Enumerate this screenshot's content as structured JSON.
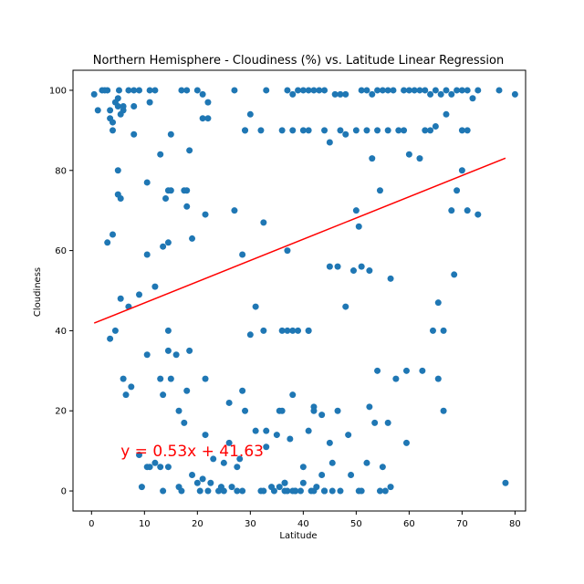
{
  "chart_data": {
    "type": "scatter",
    "title": "Northern Hemisphere - Cloudiness (%) vs. Latitude Linear Regression",
    "xlabel": "Latitude",
    "ylabel": "Cloudiness",
    "xlim": [
      -3.5,
      82
    ],
    "ylim": [
      -5,
      105
    ],
    "xticks": [
      0,
      10,
      20,
      30,
      40,
      50,
      60,
      70,
      80
    ],
    "yticks": [
      0,
      20,
      40,
      60,
      80,
      100
    ],
    "grid": false,
    "colors": {
      "points": "#1f77b4",
      "regression": "#ff0000",
      "annotation": "#ff0000"
    },
    "regression": {
      "slope": 0.53,
      "intercept": 41.63,
      "x_range": [
        0.5,
        78.2
      ]
    },
    "annotation": {
      "text": "y = 0.53x + 41.63",
      "x": 5.5,
      "y": 10
    },
    "points": {
      "x": [
        0.5,
        1.2,
        2.0,
        3.0,
        3.5,
        4.0,
        4.5,
        5.0,
        5.2,
        6.0,
        7.0,
        8.0,
        9.0,
        11.0,
        12.0,
        17.0,
        18.0,
        20.0,
        21.0,
        27.0,
        33.0,
        37.0,
        38.0,
        39.0,
        40.0,
        41.0,
        42.0,
        43.0,
        44.0,
        46.0,
        47.0,
        48.0,
        51.0,
        52.0,
        53.0,
        54.0,
        55.0,
        56.0,
        57.0,
        59.0,
        60.0,
        61.0,
        62.0,
        63.0,
        64.0,
        65.0,
        66.0,
        67.0,
        68.0,
        69.0,
        70.0,
        71.0,
        72.0,
        73.0,
        77.0,
        5.0,
        5.5,
        6.0,
        8.0,
        4.0,
        3.5,
        2.5,
        11.0,
        15.0,
        22.0,
        29.0,
        30.0,
        29.0,
        32.0,
        36.0,
        38.0,
        40.0,
        41.0,
        44.0,
        47.0,
        50.0,
        52.0,
        54.0,
        56.0,
        59.0,
        63.0,
        64.0,
        65.0,
        71.0,
        67.0,
        70.0,
        5.0,
        13.0,
        18.5,
        18.0,
        21.0,
        22.0,
        45.0,
        48.0,
        53.0,
        58.0,
        62.0,
        8.0,
        10.5,
        14.0,
        17.5,
        14.5,
        15.0,
        18.0,
        21.5,
        27.0,
        32.5,
        37.0,
        50.0,
        54.5,
        60.0,
        68.0,
        69.0,
        70.0,
        71.0,
        73.0,
        80.0,
        3.0,
        4.0,
        5.0,
        5.5,
        10.5,
        12.0,
        13.5,
        14.5,
        19.0,
        30.0,
        28.5,
        36.0,
        38.0,
        39.0,
        41.0,
        46.5,
        49.5,
        51.0,
        52.5,
        56.5,
        57.5,
        65.5,
        68.5,
        50.5,
        7.0,
        9.0,
        5.5,
        3.5,
        4.5,
        10.5,
        14.5,
        16.0,
        18.5,
        31.0,
        32.5,
        37.0,
        41.0,
        45.0,
        48.0,
        54.0,
        59.5,
        62.5,
        64.5,
        66.5,
        14.5,
        15.0,
        13.0,
        18.0,
        21.5,
        26.0,
        28.5,
        35.5,
        38.0,
        42.0,
        46.5,
        52.5,
        56.0,
        59.5,
        65.5,
        66.5,
        6.0,
        6.5,
        7.5,
        13.5,
        16.5,
        17.5,
        21.5,
        26.0,
        33.0,
        36.0,
        41.0,
        42.0,
        43.5,
        45.0,
        48.5,
        52.0,
        53.5,
        55.0,
        10.5,
        11.0,
        13.0,
        14.5,
        19.0,
        21.0,
        23.0,
        25.0,
        27.5,
        29.0,
        31.0,
        33.0,
        35.0,
        37.5,
        40.0,
        43.5,
        45.5,
        50.5,
        54.5,
        56.5,
        9.5,
        16.5,
        20.0,
        22.5,
        24.5,
        26.5,
        27.5,
        32.0,
        34.5,
        36.5,
        38.5,
        41.5,
        44.0,
        45.5,
        51.0,
        55.5,
        78.2,
        13.5,
        17.0,
        20.5,
        22.0,
        24.0,
        25.0,
        28.5,
        32.5,
        34.0,
        37.0,
        38.5,
        42.0,
        44.0,
        35.5,
        38.0,
        39.5,
        36.5,
        40.0,
        42.5,
        44.0,
        47.0,
        49.0,
        28.0,
        36.5,
        12.0,
        9.0
      ],
      "y": [
        99,
        95,
        100,
        100,
        93,
        92,
        97,
        98,
        100,
        95,
        100,
        100,
        100,
        100,
        100,
        100,
        100,
        100,
        99,
        100,
        100,
        100,
        99,
        100,
        100,
        100,
        100,
        100,
        100,
        99,
        99,
        99,
        100,
        100,
        99,
        100,
        100,
        100,
        100,
        100,
        100,
        100,
        100,
        100,
        99,
        100,
        99,
        100,
        99,
        100,
        100,
        100,
        98,
        100,
        100,
        96,
        94,
        96,
        96,
        90,
        95,
        100,
        97,
        89,
        97,
        90,
        94,
        90,
        90,
        90,
        90,
        90,
        90,
        90,
        90,
        90,
        90,
        90,
        90,
        90,
        90,
        90,
        91,
        90,
        94,
        90,
        80,
        84,
        85,
        75,
        93,
        93,
        87,
        89,
        83,
        90,
        83,
        89,
        77,
        73,
        75,
        75,
        75,
        71,
        69,
        70,
        67,
        60,
        70,
        75,
        84,
        70,
        75,
        80,
        70,
        69,
        99,
        62,
        64,
        74,
        73,
        59,
        51,
        61,
        62,
        63,
        39,
        59,
        40,
        40,
        40,
        40,
        56,
        55,
        56,
        55,
        53,
        28,
        47,
        54,
        66,
        46,
        49,
        48,
        38,
        40,
        34,
        40,
        34,
        35,
        46,
        40,
        40,
        40,
        56,
        46,
        30,
        30,
        30,
        40,
        40,
        35,
        28,
        28,
        25,
        28,
        22,
        25,
        20,
        24,
        21,
        20,
        21,
        17,
        12,
        28,
        20,
        28,
        24,
        26,
        24,
        20,
        17,
        14,
        12,
        11,
        20,
        15,
        20,
        19,
        12,
        14,
        7,
        17,
        6,
        6,
        6,
        6,
        6,
        4,
        3,
        8,
        7,
        6,
        20,
        15,
        15,
        14,
        13,
        6,
        4,
        7,
        0,
        0,
        1,
        1,
        1,
        2,
        2,
        1,
        1,
        0,
        0,
        0,
        0,
        0,
        0,
        0,
        0,
        0,
        0,
        2,
        0,
        0,
        0,
        0,
        0,
        0,
        0,
        0,
        1,
        0,
        0,
        0,
        0,
        1,
        0,
        0,
        2,
        2,
        1,
        0,
        0,
        4,
        8,
        2,
        7,
        9
      ]
    }
  }
}
